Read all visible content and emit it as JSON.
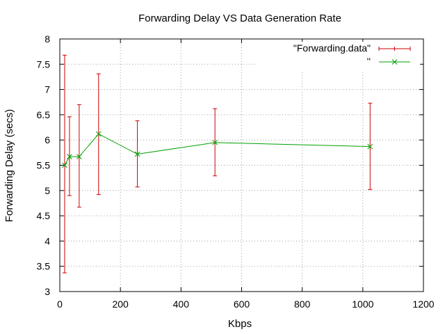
{
  "chart_data": {
    "type": "line",
    "title": "Forwarding Delay VS Data Generation Rate",
    "xlabel": "Kbps",
    "ylabel": "Forwarding Delay (secs)",
    "xlim": [
      0,
      1200
    ],
    "ylim": [
      3,
      8
    ],
    "xticks": [
      "0",
      "200",
      "400",
      "600",
      "800",
      "1000",
      "1200"
    ],
    "yticks": [
      "3",
      "3.5",
      "4",
      "4.5",
      "5",
      "5.5",
      "6",
      "6.5",
      "7",
      "7.5",
      "8"
    ],
    "grid": true,
    "legend_position": "top-right",
    "series": [
      {
        "name": "\"Forwarding.data\"",
        "style": "errorbars",
        "color": "#cc0000",
        "points": [
          {
            "x": 16,
            "low": 3.37,
            "high": 7.68
          },
          {
            "x": 32,
            "low": 4.9,
            "high": 6.46
          },
          {
            "x": 64,
            "low": 4.67,
            "high": 6.7
          },
          {
            "x": 128,
            "low": 4.92,
            "high": 7.31
          },
          {
            "x": 256,
            "low": 5.07,
            "high": 6.38
          },
          {
            "x": 512,
            "low": 5.29,
            "high": 6.62
          },
          {
            "x": 1024,
            "low": 5.02,
            "high": 6.73
          }
        ]
      },
      {
        "name": "''",
        "style": "linespoints",
        "color": "#00a000",
        "x": [
          16,
          32,
          64,
          128,
          256,
          512,
          1024
        ],
        "y": [
          5.5,
          5.67,
          5.67,
          6.12,
          5.72,
          5.95,
          5.87
        ]
      }
    ]
  }
}
